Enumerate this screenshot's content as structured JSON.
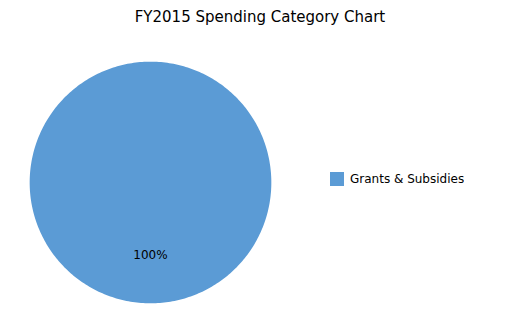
{
  "chart_data": {
    "type": "pie",
    "title": "FY2015 Spending  Category Chart",
    "categories": [
      "Grants & Subsidies"
    ],
    "values": [
      100
    ],
    "value_labels": [
      "100%"
    ],
    "colors": [
      "#5B9BD5"
    ],
    "legend": "right",
    "data_labels": true
  }
}
